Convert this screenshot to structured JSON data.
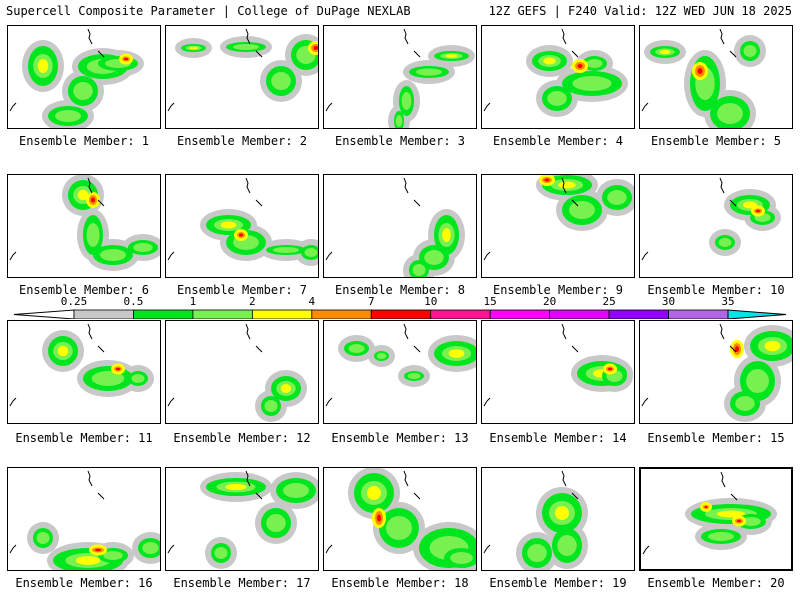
{
  "header": {
    "title": "Supercell Composite Parameter | College of DuPage NEXLAB",
    "run_info": "12Z GEFS | F240 Valid: 12Z WED JUN 18 2025"
  },
  "colorbar": {
    "ticks": [
      "0.25",
      "0.5",
      "1",
      "2",
      "4",
      "7",
      "10",
      "15",
      "20",
      "25",
      "30",
      "35"
    ],
    "colors": [
      "#c8c8c8",
      "#00e61e",
      "#78f050",
      "#ffff00",
      "#ff8c00",
      "#ff0000",
      "#ff1493",
      "#ff00ff",
      "#e600ff",
      "#9400ff",
      "#b266e6",
      "#00e6e6"
    ]
  },
  "panels": [
    {
      "label": "Ensemble Member: 1"
    },
    {
      "label": "Ensemble Member: 2"
    },
    {
      "label": "Ensemble Member: 3"
    },
    {
      "label": "Ensemble Member: 4"
    },
    {
      "label": "Ensemble Member: 5"
    },
    {
      "label": "Ensemble Member: 6"
    },
    {
      "label": "Ensemble Member: 7"
    },
    {
      "label": "Ensemble Member: 8"
    },
    {
      "label": "Ensemble Member: 9"
    },
    {
      "label": "Ensemble Member: 10"
    },
    {
      "label": "Ensemble Member: 11"
    },
    {
      "label": "Ensemble Member: 12"
    },
    {
      "label": "Ensemble Member: 13"
    },
    {
      "label": "Ensemble Member: 14"
    },
    {
      "label": "Ensemble Member: 15"
    },
    {
      "label": "Ensemble Member: 16"
    },
    {
      "label": "Ensemble Member: 17"
    },
    {
      "label": "Ensemble Member: 18"
    },
    {
      "label": "Ensemble Member: 19"
    },
    {
      "label": "Ensemble Member: 20",
      "selected": true
    }
  ]
}
